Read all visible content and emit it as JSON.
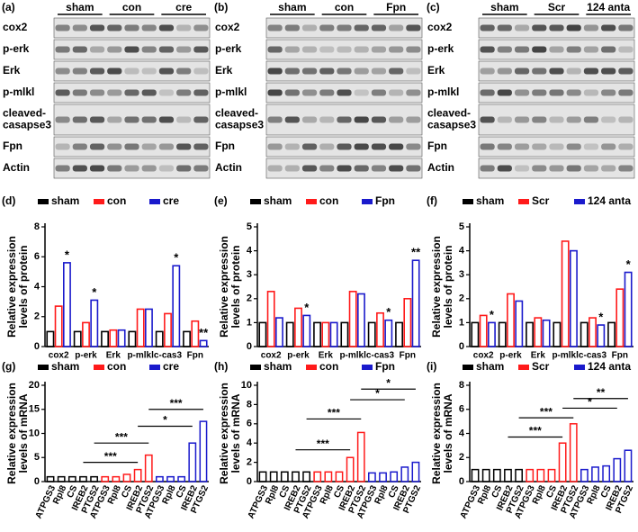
{
  "blots": [
    {
      "label": "(a)",
      "groups": [
        "sham",
        "con",
        "cre"
      ],
      "rows": [
        [
          "cox2"
        ],
        [
          "p-erk"
        ],
        [
          "Erk"
        ],
        [
          "p-mlkl"
        ],
        [
          "cleaved-",
          "casapse3"
        ],
        [
          "Fpn"
        ],
        [
          "Actin"
        ]
      ]
    },
    {
      "label": "(b)",
      "groups": [
        "sham",
        "con",
        "Fpn"
      ],
      "rows": [
        [
          "cox2"
        ],
        [
          "p-erk"
        ],
        [
          "Erk"
        ],
        [
          "p-mlkl"
        ],
        [
          "cleaved-",
          "casapse3"
        ],
        [
          "Fpn"
        ],
        [
          "Actin"
        ]
      ]
    },
    {
      "label": "(c)",
      "groups": [
        "sham",
        "Scr",
        "124 anta"
      ],
      "rows": [
        [
          "cox2"
        ],
        [
          "p-erk"
        ],
        [
          "Erk"
        ],
        [
          "p-mlkl"
        ],
        [
          "cleaved-",
          "casapse3"
        ],
        [
          "Fpn"
        ],
        [
          "Actin"
        ]
      ]
    }
  ],
  "chart_data": [
    {
      "type": "bar",
      "label": "(d)",
      "ylabel": [
        "Relative expression",
        "levels of protein"
      ],
      "categories": [
        "cox2",
        "p-erk",
        "Erk",
        "p-mlkl",
        "c-cas3",
        "Fpn"
      ],
      "series": [
        {
          "name": "sham",
          "color": "#000000",
          "values": [
            1,
            1,
            1,
            1,
            1,
            1
          ]
        },
        {
          "name": "con",
          "color": "#ff1a1a",
          "values": [
            2.7,
            1.6,
            1.1,
            2.5,
            2.2,
            1.7
          ]
        },
        {
          "name": "cre",
          "color": "#1a1acc",
          "values": [
            5.6,
            3.1,
            1.1,
            2.5,
            5.4,
            0.4
          ]
        }
      ],
      "ylim": [
        0,
        8
      ],
      "yticks": [
        0,
        2,
        4,
        6,
        8
      ],
      "annotations": [
        {
          "series": 2,
          "index": 0,
          "text": "*"
        },
        {
          "series": 2,
          "index": 1,
          "text": "*"
        },
        {
          "series": 2,
          "index": 4,
          "text": "*"
        },
        {
          "series": 2,
          "index": 5,
          "text": "**"
        }
      ]
    },
    {
      "type": "bar",
      "label": "(e)",
      "ylabel": [
        "Relative expression",
        "levels of protein"
      ],
      "categories": [
        "cox2",
        "p-erk",
        "Erk",
        "p-mlkl",
        "c-cas3",
        "Fpn"
      ],
      "series": [
        {
          "name": "sham",
          "color": "#000000",
          "values": [
            1,
            1,
            1,
            1,
            1,
            1
          ]
        },
        {
          "name": "con",
          "color": "#ff1a1a",
          "values": [
            2.3,
            1.6,
            1.0,
            2.3,
            1.4,
            2.0
          ]
        },
        {
          "name": "Fpn",
          "color": "#1a1acc",
          "values": [
            1.2,
            1.3,
            1.0,
            2.2,
            1.1,
            3.6
          ]
        }
      ],
      "ylim": [
        0,
        5
      ],
      "yticks": [
        0,
        1,
        2,
        3,
        4,
        5
      ],
      "annotations": [
        {
          "series": 2,
          "index": 1,
          "text": "*"
        },
        {
          "series": 2,
          "index": 4,
          "text": "*"
        },
        {
          "series": 2,
          "index": 5,
          "text": "**"
        }
      ]
    },
    {
      "type": "bar",
      "label": "(f)",
      "ylabel": [
        "Relative expression",
        "levels of protein"
      ],
      "categories": [
        "cox2",
        "p-erk",
        "Erk",
        "p-mlkl",
        "c-cas3",
        "Fpn"
      ],
      "series": [
        {
          "name": "sham",
          "color": "#000000",
          "values": [
            1,
            1,
            1,
            1,
            1,
            1
          ]
        },
        {
          "name": "Scr",
          "color": "#ff1a1a",
          "values": [
            1.3,
            2.2,
            1.2,
            4.4,
            1.2,
            2.4
          ]
        },
        {
          "name": "124 anta",
          "color": "#1a1acc",
          "values": [
            1.0,
            1.9,
            1.1,
            4.0,
            0.9,
            3.1
          ]
        }
      ],
      "ylim": [
        0,
        5
      ],
      "yticks": [
        0,
        1,
        2,
        3,
        4,
        5
      ],
      "annotations": [
        {
          "series": 2,
          "index": 0,
          "text": "*"
        },
        {
          "series": 2,
          "index": 4,
          "text": "*"
        },
        {
          "series": 2,
          "index": 5,
          "text": "*"
        }
      ]
    },
    {
      "type": "mrna",
      "label": "(g)",
      "ylabel": [
        "Relative expression",
        "levels of mRNA"
      ],
      "categories": [
        "ATPGS3",
        "Rpl8",
        "CS",
        "IREB2",
        "PTGS2",
        "ATPGS3",
        "Rpl8",
        "CS",
        "IREB2",
        "PTGS2",
        "ATPGS3",
        "Rpl8",
        "CS",
        "IREB2",
        "PTGS2"
      ],
      "series": [
        {
          "name": "sham",
          "color": "#000000",
          "values": [
            1,
            1,
            1,
            1,
            1,
            null,
            null,
            null,
            null,
            null,
            null,
            null,
            null,
            null,
            null
          ]
        },
        {
          "name": "con",
          "color": "#ff1a1a",
          "values": [
            null,
            null,
            null,
            null,
            null,
            1,
            1,
            1.5,
            2.5,
            5.5,
            null,
            null,
            null,
            null,
            null
          ]
        },
        {
          "name": "cre",
          "color": "#1a1acc",
          "values": [
            null,
            null,
            null,
            null,
            null,
            null,
            null,
            null,
            null,
            null,
            1,
            1,
            1,
            8,
            12.5
          ]
        }
      ],
      "ylim": [
        0,
        20
      ],
      "yticks": [
        0,
        5,
        10,
        15,
        20
      ],
      "brackets": [
        {
          "from": 3,
          "to": 8,
          "text": "***"
        },
        {
          "from": 4,
          "to": 9,
          "text": "***"
        },
        {
          "from": 8,
          "to": 13,
          "text": "*"
        },
        {
          "from": 9,
          "to": 14,
          "text": "***"
        }
      ]
    },
    {
      "type": "mrna",
      "label": "(h)",
      "ylabel": [
        "Relative expression",
        "levels of mRNA"
      ],
      "categories": [
        "ATPGS3",
        "Rpl8",
        "CS",
        "IREB2",
        "PTGS2",
        "ATPGS3",
        "Rpl8",
        "CS",
        "IREB2",
        "PTGS2",
        "ATPGS3",
        "Rpl8",
        "CS",
        "IREB2",
        "PTGS2"
      ],
      "series": [
        {
          "name": "sham",
          "color": "#000000",
          "values": [
            1,
            1,
            1,
            1,
            1,
            null,
            null,
            null,
            null,
            null,
            null,
            null,
            null,
            null,
            null
          ]
        },
        {
          "name": "con",
          "color": "#ff1a1a",
          "values": [
            null,
            null,
            null,
            null,
            null,
            1,
            1,
            1,
            2.5,
            5.1,
            null,
            null,
            null,
            null,
            null
          ]
        },
        {
          "name": "Fpn",
          "color": "#1a1acc",
          "values": [
            null,
            null,
            null,
            null,
            null,
            null,
            null,
            null,
            null,
            null,
            0.9,
            0.9,
            1.0,
            1.5,
            2.0
          ]
        }
      ],
      "ylim": [
        0,
        10
      ],
      "yticks": [
        0,
        2,
        4,
        6,
        8,
        10
      ],
      "brackets": [
        {
          "from": 3,
          "to": 8,
          "text": "***"
        },
        {
          "from": 4,
          "to": 9,
          "text": "***"
        },
        {
          "from": 8,
          "to": 13,
          "text": "*"
        },
        {
          "from": 9,
          "to": 14,
          "text": "*"
        }
      ]
    },
    {
      "type": "mrna",
      "label": "(i)",
      "ylabel": [
        "Relative expression",
        "levels of mRNA"
      ],
      "categories": [
        "ATPGS3",
        "Rpl8",
        "CS",
        "IREB2",
        "PTGS2",
        "ATPGS3",
        "Rpl8",
        "CS",
        "IREB2",
        "PTGS2",
        "ATPGS3",
        "Rpl8",
        "CS",
        "IREB2",
        "PTGS2"
      ],
      "series": [
        {
          "name": "sham",
          "color": "#000000",
          "values": [
            1,
            1,
            1,
            1,
            1,
            null,
            null,
            null,
            null,
            null,
            null,
            null,
            null,
            null,
            null
          ]
        },
        {
          "name": "Scr",
          "color": "#ff1a1a",
          "values": [
            null,
            null,
            null,
            null,
            null,
            1,
            1,
            1,
            3.2,
            4.8,
            null,
            null,
            null,
            null,
            null
          ]
        },
        {
          "name": "124 anta",
          "color": "#1a1acc",
          "values": [
            null,
            null,
            null,
            null,
            null,
            null,
            null,
            null,
            null,
            null,
            1.0,
            1.2,
            1.3,
            1.9,
            2.6
          ]
        }
      ],
      "ylim": [
        0,
        8
      ],
      "yticks": [
        0,
        2,
        4,
        6,
        8
      ],
      "brackets": [
        {
          "from": 3,
          "to": 8,
          "text": "***"
        },
        {
          "from": 4,
          "to": 9,
          "text": "***"
        },
        {
          "from": 8,
          "to": 13,
          "text": "*"
        },
        {
          "from": 9,
          "to": 14,
          "text": "**"
        }
      ]
    }
  ]
}
